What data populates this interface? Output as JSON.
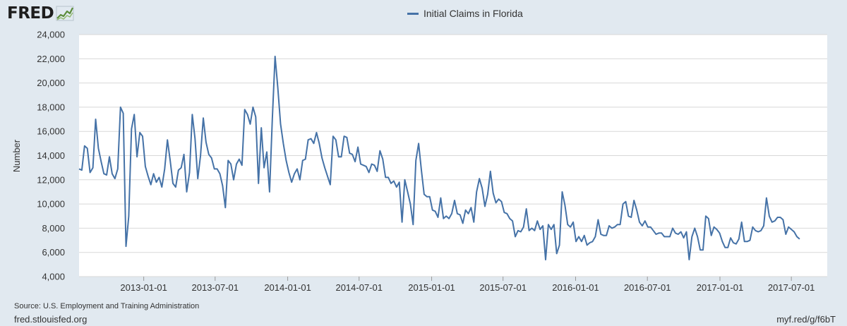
{
  "brand": {
    "logo_text": "FRED",
    "logo_icon": "chart-line-icon"
  },
  "footer": {
    "source": "Source: U.S. Employment and Training Administration",
    "site": "fred.stlouisfed.org",
    "shortlink": "myf.red/g/f6bT"
  },
  "colors": {
    "series": "#4572a7",
    "background": "#e1e9f0",
    "plot": "#ffffff",
    "grid": "#d8d8d8"
  },
  "chart_data": {
    "type": "line",
    "title": "",
    "xlabel": "",
    "ylabel": "Number",
    "ylim": [
      4000,
      24000
    ],
    "xlim": [
      "2012-07-21",
      "2017-09-30"
    ],
    "grid": true,
    "legend": "top-center",
    "yticks": [
      4000,
      6000,
      8000,
      10000,
      12000,
      14000,
      16000,
      18000,
      20000,
      22000,
      24000
    ],
    "ytick_labels": [
      "4,000",
      "6,000",
      "8,000",
      "10,000",
      "12,000",
      "14,000",
      "16,000",
      "18,000",
      "20,000",
      "22,000",
      "24,000"
    ],
    "xticks": [
      "2013-01-01",
      "2013-07-01",
      "2014-01-01",
      "2014-07-01",
      "2015-01-01",
      "2015-07-01",
      "2016-01-01",
      "2016-07-01",
      "2017-01-01",
      "2017-07-01"
    ],
    "series": [
      {
        "name": "Initial Claims in Florida",
        "x_start": "2012-07-21",
        "x_step_days": 7,
        "values": [
          12900,
          12800,
          14800,
          14600,
          12600,
          13000,
          17000,
          14600,
          13500,
          12500,
          12400,
          13900,
          12500,
          12100,
          12900,
          18000,
          17500,
          6500,
          9000,
          16200,
          17400,
          13900,
          15900,
          15600,
          13100,
          12300,
          11600,
          12500,
          11800,
          12200,
          11400,
          12900,
          15300,
          13600,
          11700,
          11400,
          12800,
          13000,
          14100,
          11000,
          12600,
          17400,
          15400,
          12100,
          14000,
          17100,
          15100,
          14100,
          13800,
          12900,
          12900,
          12500,
          11500,
          9700,
          13600,
          13300,
          12000,
          13300,
          13700,
          13200,
          17800,
          17400,
          16600,
          18000,
          17200,
          11700,
          16300,
          13000,
          14300,
          11000,
          17000,
          22200,
          19600,
          16600,
          15000,
          13600,
          12600,
          11800,
          12500,
          12900,
          12000,
          13600,
          13700,
          15300,
          15400,
          15000,
          15900,
          15000,
          13800,
          13000,
          12300,
          11600,
          15600,
          15300,
          13900,
          13900,
          15600,
          15500,
          14200,
          14100,
          13500,
          14700,
          13300,
          13200,
          13100,
          12600,
          13300,
          13200,
          12700,
          14400,
          13700,
          12200,
          12200,
          11700,
          11900,
          11400,
          11800,
          8500,
          12000,
          11000,
          10000,
          8300,
          13600,
          15000,
          12800,
          10800,
          10600,
          10600,
          9500,
          9400,
          8900,
          10500,
          8800,
          9000,
          8800,
          9200,
          10300,
          9200,
          9100,
          8400,
          9500,
          9200,
          9700,
          8500,
          11000,
          12100,
          11300,
          9800,
          10800,
          12700,
          10900,
          10100,
          10400,
          10200,
          9300,
          9200,
          8800,
          8600,
          7300,
          7800,
          7700,
          8100,
          9600,
          7800,
          8000,
          7800,
          8600,
          7900,
          8200,
          5400,
          8300,
          7900,
          8300,
          5900,
          6600,
          11000,
          9900,
          8300,
          8100,
          8500,
          6900,
          7300,
          6900,
          7400,
          6600,
          6800,
          6900,
          7300,
          8700,
          7500,
          7400,
          7400,
          8200,
          8000,
          8100,
          8300,
          8300,
          10000,
          10200,
          9000,
          8900,
          10300,
          9500,
          8500,
          8200,
          8600,
          8100,
          8100,
          7800,
          7500,
          7600,
          7600,
          7300,
          7300,
          7300,
          8000,
          7600,
          7500,
          7700,
          7200,
          7700,
          5400,
          7300,
          8000,
          7300,
          6200,
          6200,
          9000,
          8800,
          7400,
          8100,
          7900,
          7600,
          6900,
          6400,
          6400,
          7200,
          6800,
          6700,
          7100,
          8500,
          6900,
          6900,
          7000,
          8100,
          7800,
          7700,
          7800,
          8200,
          10500,
          9000,
          8500,
          8600,
          8900,
          8900,
          8700,
          7500,
          8100,
          7900,
          7700,
          7300,
          7100
        ]
      }
    ]
  }
}
